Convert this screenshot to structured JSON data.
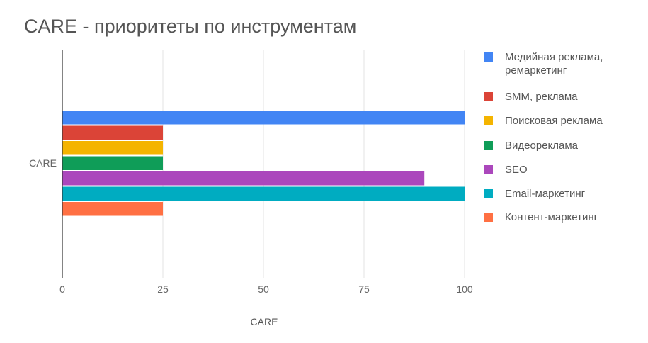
{
  "chart_data": {
    "type": "bar",
    "orientation": "horizontal",
    "title": "CARE - приоритеты по инструментам",
    "xlabel": "CARE",
    "ylabel": "",
    "categories": [
      "CARE"
    ],
    "xlim": [
      0,
      100
    ],
    "xticks": [
      0,
      25,
      50,
      75,
      100
    ],
    "grid": true,
    "legend_position": "right",
    "series": [
      {
        "name": "Медийная реклама, ремаркетинг",
        "legend_lines": [
          "Медийная реклама,",
          "ремаркетинг"
        ],
        "values": [
          100
        ],
        "color": "#4285f4"
      },
      {
        "name": "SMM, реклама",
        "legend_lines": [
          "SMM, реклама"
        ],
        "values": [
          25
        ],
        "color": "#db4437"
      },
      {
        "name": "Поисковая реклама",
        "legend_lines": [
          "Поисковая реклама"
        ],
        "values": [
          25
        ],
        "color": "#f4b400"
      },
      {
        "name": "Видеореклама",
        "legend_lines": [
          "Видеореклама"
        ],
        "values": [
          25
        ],
        "color": "#0f9d58"
      },
      {
        "name": "SEO",
        "legend_lines": [
          "SEO"
        ],
        "values": [
          90
        ],
        "color": "#ab47bc"
      },
      {
        "name": "Email-маркетинг",
        "legend_lines": [
          "Email-маркетинг"
        ],
        "values": [
          100
        ],
        "color": "#00acc1"
      },
      {
        "name": "Контент-маркетинг",
        "legend_lines": [
          "Контент-маркетинг"
        ],
        "values": [
          25
        ],
        "color": "#ff7043"
      }
    ]
  }
}
